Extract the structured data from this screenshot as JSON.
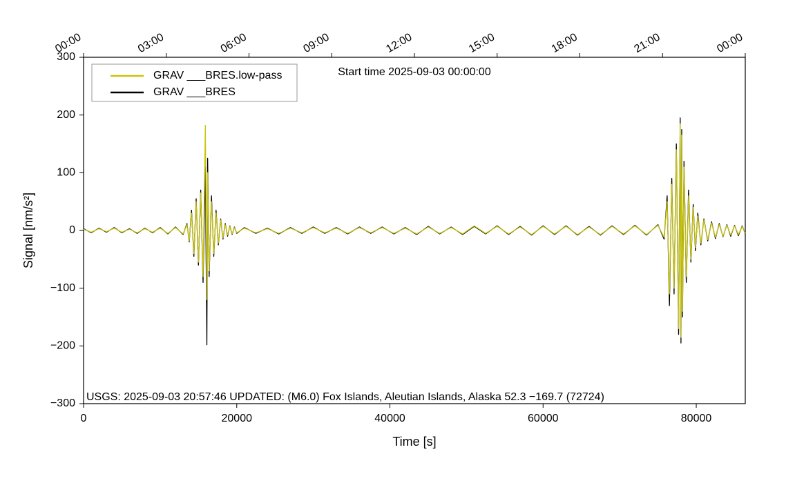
{
  "chart_data": {
    "type": "line",
    "annotation_top": "Start time 2025-09-03 00:00:00",
    "annotation_bottom": "USGS: 2025-09-03 20:57:46 UPDATED: (M6.0) Fox Islands, Aleutian Islands, Alaska 52.3 −169.7 (72724)",
    "xlabel": "Time [s]",
    "ylabel": "Signal [nm/s²]",
    "xlim": [
      0,
      86400
    ],
    "ylim": [
      -300,
      300
    ],
    "xticks": [
      0,
      20000,
      40000,
      60000,
      80000
    ],
    "yticks": [
      {
        "value": -300,
        "label": "−300"
      },
      {
        "value": -200,
        "label": "−200"
      },
      {
        "value": -100,
        "label": "−100"
      },
      0,
      100,
      200,
      300
    ],
    "x2ticks": [
      {
        "value": 0,
        "label": "00:00"
      },
      {
        "value": 10800,
        "label": "03:00"
      },
      {
        "value": 21600,
        "label": "06:00"
      },
      {
        "value": 32400,
        "label": "09:00"
      },
      {
        "value": 43200,
        "label": "12:00"
      },
      {
        "value": 54000,
        "label": "15:00"
      },
      {
        "value": 64800,
        "label": "18:00"
      },
      {
        "value": 75600,
        "label": "21:00"
      },
      {
        "value": 86400,
        "label": "00:00"
      }
    ],
    "legend": "upper left",
    "x": [
      0,
      1000,
      2000,
      3000,
      4000,
      5000,
      6000,
      7000,
      8000,
      9000,
      10000,
      11000,
      12000,
      13000,
      13500,
      13800,
      14100,
      14400,
      14700,
      15000,
      15300,
      15600,
      15900,
      16100,
      16200,
      16400,
      16700,
      17000,
      17300,
      17600,
      17900,
      18200,
      18500,
      18800,
      19100,
      19400,
      19700,
      20000,
      21000,
      22500,
      24000,
      25500,
      27000,
      28500,
      30000,
      31500,
      33000,
      34500,
      36000,
      37500,
      39000,
      40500,
      42000,
      43500,
      45000,
      46500,
      48000,
      49500,
      51000,
      52500,
      54000,
      55500,
      57000,
      58500,
      60000,
      61500,
      63000,
      64500,
      66000,
      67500,
      69000,
      70500,
      72000,
      73500,
      75000,
      75800,
      76200,
      76500,
      76800,
      77100,
      77400,
      77700,
      77900,
      78000,
      78100,
      78200,
      78400,
      78700,
      79000,
      79300,
      79600,
      79900,
      80200,
      80600,
      81000,
      81500,
      82000,
      82500,
      83000,
      83500,
      84000,
      84500,
      85000,
      85500,
      86000,
      86400
    ],
    "series": [
      {
        "name": "GRAV ___BRES",
        "color": "#000000",
        "values": [
          3,
          -4,
          4,
          -3,
          5,
          -4,
          3,
          -5,
          4,
          -4,
          5,
          -6,
          6,
          -7,
          12,
          -20,
          35,
          -45,
          55,
          -60,
          70,
          -90,
          110,
          -198,
          125,
          -80,
          60,
          -45,
          35,
          -25,
          20,
          -15,
          12,
          -10,
          8,
          -7,
          6,
          -5,
          5,
          -5,
          4,
          -6,
          5,
          -5,
          6,
          -5,
          5,
          -6,
          6,
          -5,
          6,
          -6,
          5,
          -7,
          7,
          -6,
          6,
          -7,
          7,
          -6,
          8,
          -7,
          7,
          -8,
          8,
          -7,
          8,
          -8,
          7,
          -8,
          8,
          -7,
          9,
          -8,
          10,
          -15,
          60,
          -130,
          90,
          -110,
          150,
          -180,
          195,
          -195,
          175,
          -150,
          120,
          -90,
          70,
          -55,
          45,
          -35,
          30,
          -25,
          20,
          -18,
          15,
          -14,
          12,
          -11,
          10,
          -10,
          9,
          -9,
          8,
          -6
        ]
      },
      {
        "name": "GRAV ___BRES.low-pass",
        "color": "#c8c40c",
        "values": [
          2,
          -3,
          3,
          -2,
          4,
          -3,
          2,
          -4,
          3,
          -3,
          4,
          -5,
          5,
          -6,
          10,
          -18,
          30,
          -40,
          50,
          -55,
          65,
          -80,
          182,
          -120,
          100,
          -70,
          50,
          -40,
          30,
          -22,
          18,
          -13,
          10,
          -8,
          7,
          -6,
          5,
          -4,
          4,
          -4,
          3,
          -5,
          4,
          -4,
          5,
          -4,
          4,
          -5,
          5,
          -4,
          5,
          -5,
          4,
          -6,
          6,
          -5,
          5,
          -6,
          8,
          -5,
          7,
          -6,
          6,
          -7,
          7,
          -6,
          7,
          -7,
          6,
          -7,
          7,
          -6,
          8,
          -7,
          9,
          -12,
          50,
          -110,
          80,
          -100,
          140,
          -170,
          185,
          -185,
          165,
          -140,
          110,
          -80,
          60,
          -50,
          40,
          -30,
          25,
          -22,
          18,
          -16,
          13,
          -12,
          10,
          -10,
          9,
          -8,
          8,
          -7,
          7,
          -5
        ]
      }
    ]
  }
}
